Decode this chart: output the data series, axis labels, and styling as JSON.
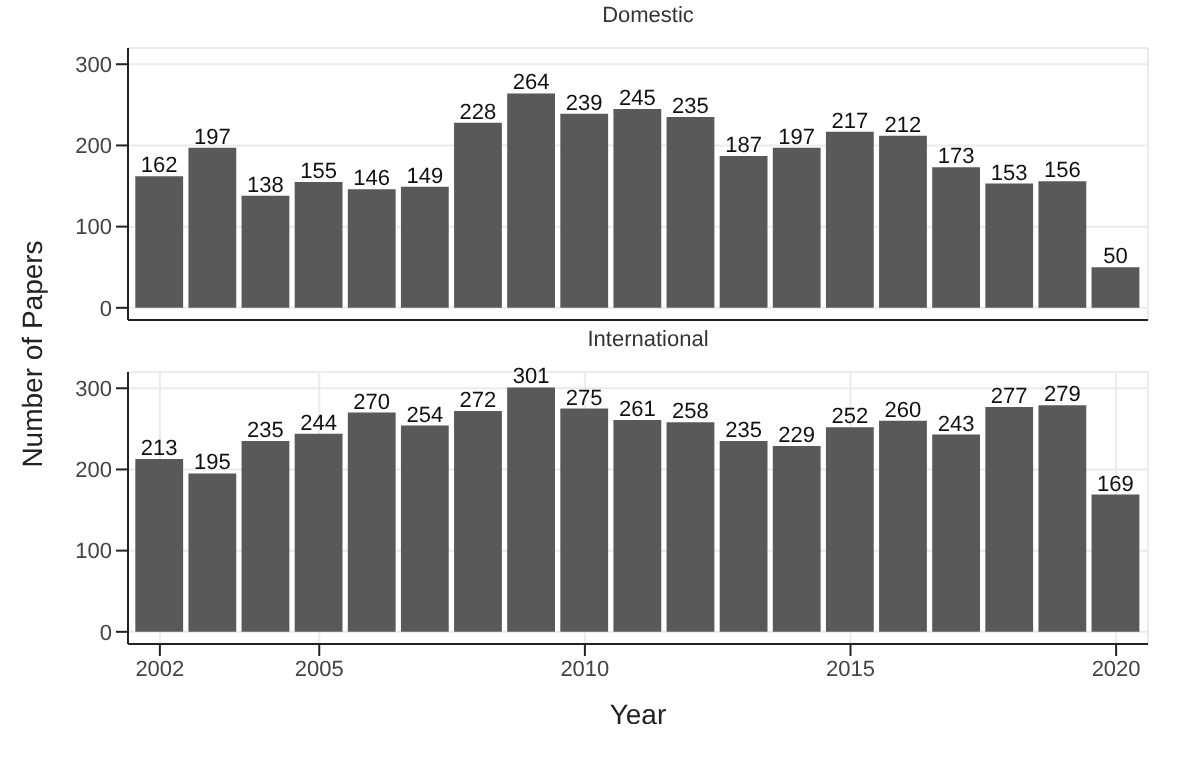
{
  "chart_data": [
    {
      "type": "bar",
      "title": "Domestic",
      "ylabel": "Number of Papers",
      "x": [
        2002,
        2003,
        2004,
        2005,
        2006,
        2007,
        2008,
        2009,
        2010,
        2011,
        2012,
        2013,
        2014,
        2015,
        2016,
        2017,
        2018,
        2019,
        2020
      ],
      "values": [
        162,
        197,
        138,
        155,
        146,
        149,
        228,
        264,
        239,
        245,
        235,
        187,
        197,
        217,
        212,
        173,
        153,
        156,
        50
      ],
      "color": "#595959",
      "xlim": [
        2001.4,
        2020.6
      ],
      "xticks": [
        2002,
        2005,
        2010,
        2015,
        2020
      ],
      "ylim": [
        -15,
        320
      ],
      "yticks": [
        0,
        100,
        200,
        300
      ],
      "grid": true,
      "data_labels": true,
      "tick_labels": "y"
    },
    {
      "type": "bar",
      "title": "International",
      "xlabel": "Year",
      "x": [
        2002,
        2003,
        2004,
        2005,
        2006,
        2007,
        2008,
        2009,
        2010,
        2011,
        2012,
        2013,
        2014,
        2015,
        2016,
        2017,
        2018,
        2019,
        2020
      ],
      "values": [
        213,
        195,
        235,
        244,
        270,
        254,
        272,
        301,
        275,
        261,
        258,
        235,
        229,
        252,
        260,
        243,
        277,
        279,
        169
      ],
      "color": "#595959",
      "xlim": [
        2001.4,
        2020.6
      ],
      "xticks": [
        2002,
        2005,
        2010,
        2015,
        2020
      ],
      "ylim": [
        -15,
        320
      ],
      "yticks": [
        0,
        100,
        200,
        300
      ],
      "grid": true,
      "data_labels": true
    }
  ]
}
